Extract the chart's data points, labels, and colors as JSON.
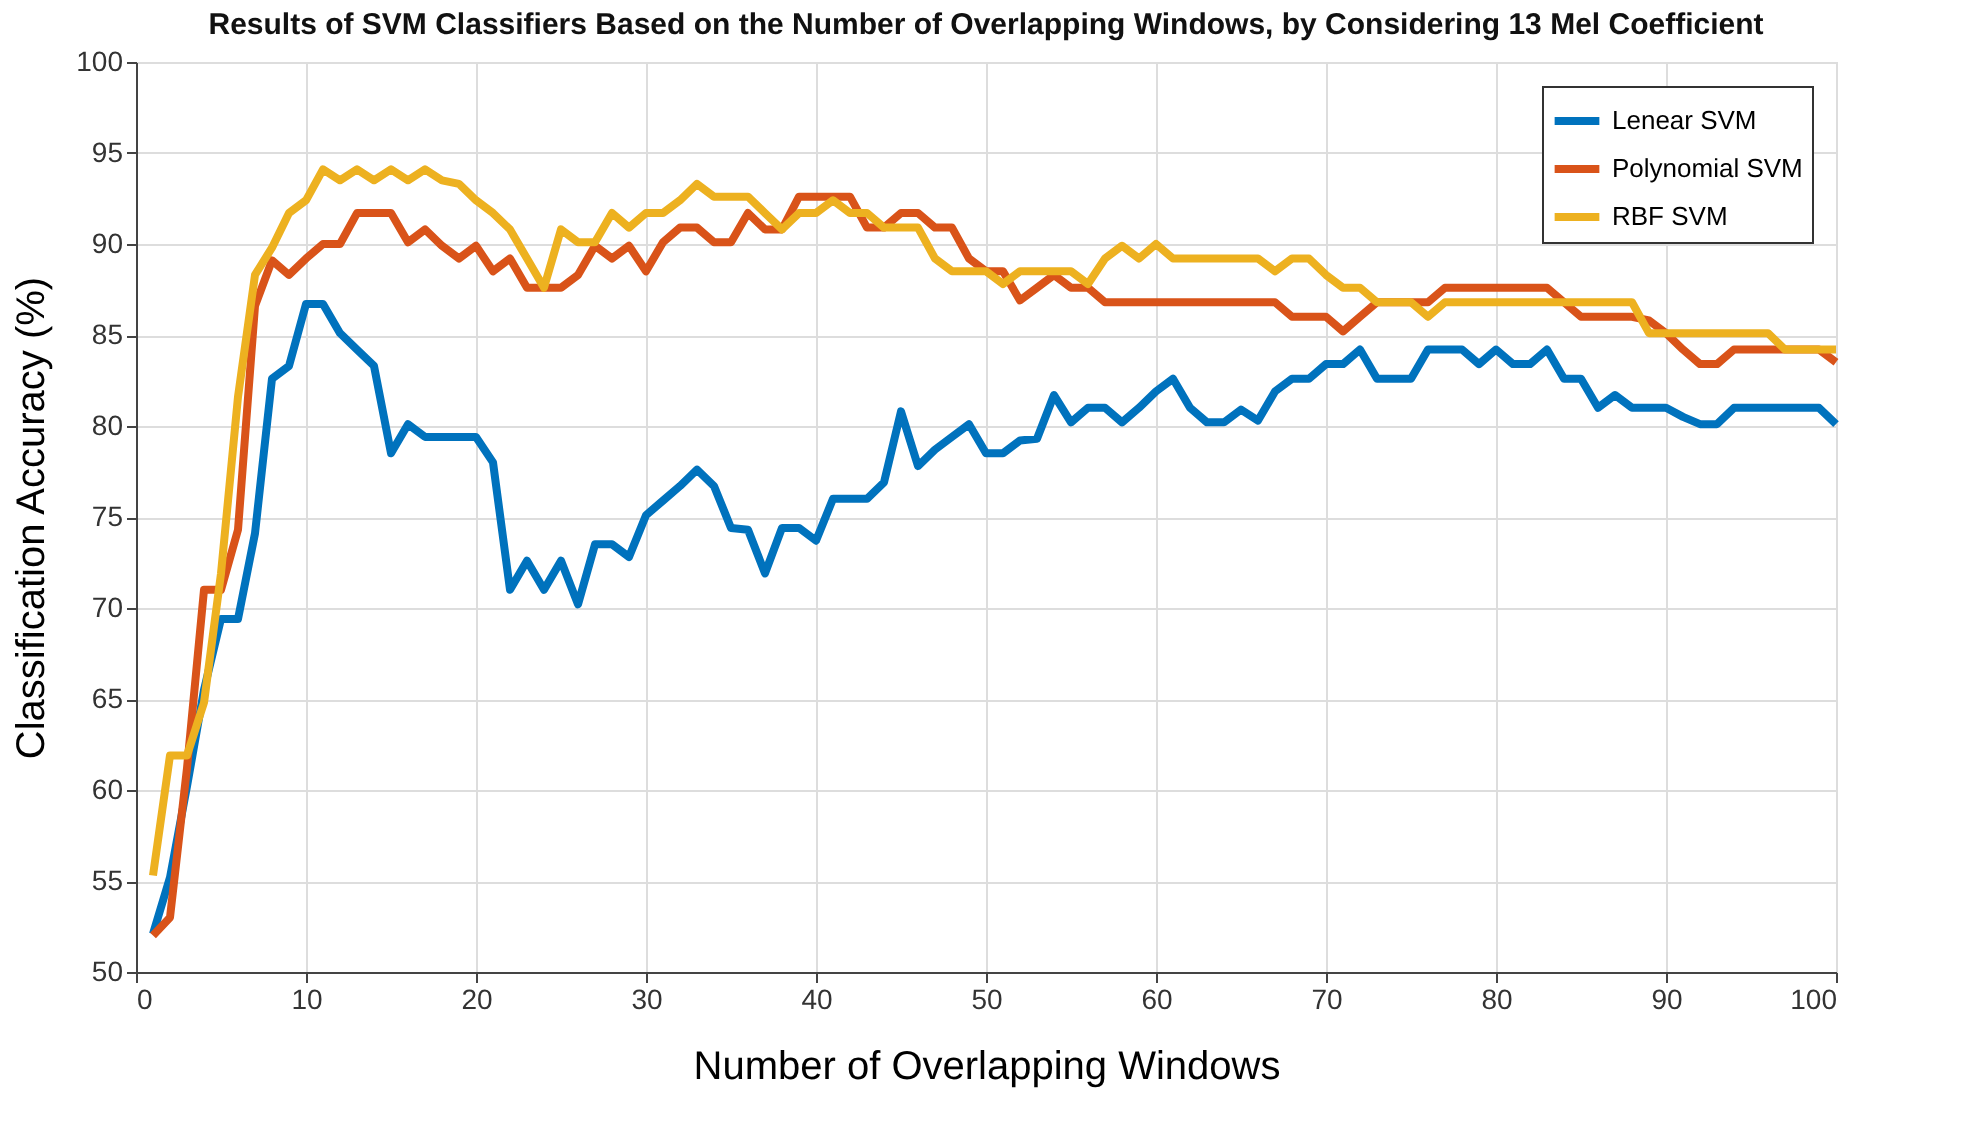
{
  "chart_data": {
    "type": "line",
    "title": "Results of SVM Classifiers Based on the Number of Overlapping Windows, by Considering 13 Mel Coefficient",
    "xlabel": "Number of Overlapping Windows",
    "ylabel": "Classification Accuracy (%)",
    "x": [
      1,
      2,
      3,
      4,
      5,
      6,
      7,
      8,
      9,
      10,
      11,
      12,
      13,
      14,
      15,
      16,
      17,
      18,
      19,
      20,
      21,
      22,
      23,
      24,
      25,
      26,
      27,
      28,
      29,
      30,
      31,
      32,
      33,
      34,
      35,
      36,
      37,
      38,
      39,
      40,
      41,
      42,
      43,
      44,
      45,
      46,
      47,
      48,
      49,
      50,
      51,
      52,
      53,
      54,
      55,
      56,
      57,
      58,
      59,
      60,
      61,
      62,
      63,
      64,
      65,
      66,
      67,
      68,
      69,
      70,
      71,
      72,
      73,
      74,
      75,
      76,
      77,
      78,
      79,
      80,
      81,
      82,
      83,
      84,
      85,
      86,
      87,
      88,
      89,
      90,
      91,
      92,
      93,
      94,
      95,
      96,
      97,
      98,
      99,
      100
    ],
    "series": [
      {
        "name": "Lenear SVM",
        "color": "#0072bd",
        "values": [
          52.1,
          55.2,
          60.2,
          65.5,
          69.4,
          69.4,
          74.1,
          82.6,
          83.3,
          86.7,
          86.7,
          85.1,
          84.2,
          83.3,
          78.5,
          80.1,
          79.4,
          79.4,
          79.4,
          79.4,
          78,
          71.0,
          72.6,
          71.0,
          72.6,
          70.2,
          73.5,
          73.5,
          72.8,
          75.1,
          75.9,
          76.7,
          77.6,
          76.7,
          74.4,
          74.3,
          71.9,
          74.4,
          74.4,
          73.7,
          76.0,
          76.0,
          76.0,
          76.9,
          80.8,
          77.8,
          78.7,
          79.4,
          80.1,
          78.5,
          78.5,
          79.2,
          79.3,
          81.7,
          80.2,
          81.0,
          81.0,
          80.2,
          81.0,
          81.9,
          82.6,
          81.0,
          80.2,
          80.2,
          80.9,
          80.3,
          81.9,
          82.6,
          82.6,
          83.4,
          83.4,
          84.2,
          82.6,
          82.6,
          82.6,
          84.2,
          84.2,
          84.2,
          83.4,
          84.2,
          83.4,
          83.4,
          84.2,
          82.6,
          82.6,
          81.0,
          81.7,
          81.0,
          81.0,
          81.0,
          80.5,
          80.1,
          80.1,
          81.0,
          81.0,
          81.0,
          81.0,
          81.0,
          81.0,
          80.1
        ]
      },
      {
        "name": "Polynomial SVM",
        "color": "#d95319",
        "values": [
          52.0,
          53.0,
          61.2,
          71.0,
          71.0,
          74.3,
          86.6,
          89.1,
          88.3,
          89.2,
          90.0,
          90.0,
          91.7,
          91.7,
          91.7,
          90.1,
          90.8,
          89.9,
          89.2,
          89.9,
          88.5,
          89.2,
          87.6,
          87.6,
          87.6,
          88.3,
          89.9,
          89.2,
          89.9,
          88.5,
          90.1,
          90.9,
          90.9,
          90.1,
          90.1,
          91.7,
          90.8,
          90.8,
          92.6,
          92.6,
          92.6,
          92.6,
          90.9,
          90.9,
          91.7,
          91.7,
          90.9,
          90.9,
          89.2,
          88.5,
          88.5,
          86.9,
          87.6,
          88.3,
          87.6,
          87.6,
          86.8,
          86.8,
          86.8,
          86.8,
          86.8,
          86.8,
          86.8,
          86.8,
          86.8,
          86.8,
          86.8,
          86.0,
          86.0,
          86.0,
          85.2,
          86.0,
          86.8,
          86.8,
          86.8,
          86.8,
          87.6,
          87.6,
          87.6,
          87.6,
          87.6,
          87.6,
          87.6,
          86.8,
          86.0,
          86.0,
          86.0,
          86.0,
          85.8,
          85.1,
          84.2,
          83.4,
          83.4,
          84.2,
          84.2,
          84.2,
          84.2,
          84.2,
          84.2,
          83.5
        ]
      },
      {
        "name": "RBF SVM",
        "color": "#edb120",
        "values": [
          55.3,
          61.9,
          61.9,
          64.8,
          71.9,
          81.6,
          88.3,
          89.8,
          91.7,
          92.4,
          94.1,
          93.5,
          94.1,
          93.5,
          94.1,
          93.5,
          94.1,
          93.5,
          93.3,
          92.4,
          91.7,
          90.8,
          89.2,
          87.6,
          90.8,
          90.1,
          90.1,
          91.7,
          90.9,
          91.7,
          91.7,
          92.4,
          93.3,
          92.6,
          92.6,
          92.6,
          91.7,
          90.8,
          91.7,
          91.7,
          92.4,
          91.7,
          91.7,
          90.9,
          90.9,
          90.9,
          89.2,
          88.5,
          88.5,
          88.5,
          87.8,
          88.5,
          88.5,
          88.5,
          88.5,
          87.8,
          89.2,
          89.9,
          89.2,
          90.0,
          89.2,
          89.2,
          89.2,
          89.2,
          89.2,
          89.2,
          88.5,
          89.2,
          89.2,
          88.3,
          87.6,
          87.6,
          86.8,
          86.8,
          86.8,
          86.0,
          86.8,
          86.8,
          86.8,
          86.8,
          86.8,
          86.8,
          86.8,
          86.8,
          86.8,
          86.8,
          86.8,
          86.8,
          85.1,
          85.1,
          85.1,
          85.1,
          85.1,
          85.1,
          85.1,
          85.1,
          84.2,
          84.2,
          84.2,
          84.2
        ]
      }
    ],
    "xlim": [
      0,
      100
    ],
    "xticks": [
      0,
      10,
      20,
      30,
      40,
      50,
      60,
      70,
      80,
      90,
      100
    ],
    "ylim": [
      50,
      100
    ],
    "yticks": [
      50,
      55,
      60,
      65,
      70,
      75,
      80,
      85,
      90,
      95,
      100
    ],
    "grid": true,
    "legend": "top right",
    "marker": "none",
    "line_style": "solid"
  }
}
